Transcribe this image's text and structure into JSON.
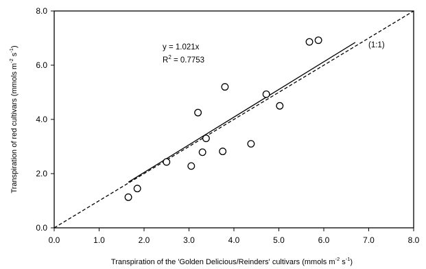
{
  "chart_data": {
    "type": "scatter",
    "xlim": [
      0,
      8
    ],
    "ylim": [
      0,
      8
    ],
    "x_ticks": [
      "0.0",
      "1.0",
      "2.0",
      "3.0",
      "4.0",
      "5.0",
      "6.0",
      "7.0",
      "8.0"
    ],
    "y_ticks": [
      "0.0",
      "2.0",
      "4.0",
      "6.0",
      "8.0"
    ],
    "grid": false,
    "legend": "none",
    "xlabel_parts": {
      "main": "Transpiration of the 'Golden Delicious/Reinders' cultivars (mmols m",
      "sup1": "-2",
      "mid": " s",
      "sup2": "-1",
      "end": ")"
    },
    "ylabel_parts": {
      "main": "Transpiration of red cultivars (mmols m",
      "sup1": "-2",
      "mid": " s",
      "sup2": "-1",
      "end": ")"
    },
    "points": [
      {
        "x": 1.65,
        "y": 1.13
      },
      {
        "x": 1.85,
        "y": 1.45
      },
      {
        "x": 2.5,
        "y": 2.43
      },
      {
        "x": 3.05,
        "y": 2.28
      },
      {
        "x": 3.2,
        "y": 4.25
      },
      {
        "x": 3.3,
        "y": 2.79
      },
      {
        "x": 3.38,
        "y": 3.3
      },
      {
        "x": 3.75,
        "y": 2.82
      },
      {
        "x": 3.8,
        "y": 5.2
      },
      {
        "x": 4.38,
        "y": 3.1
      },
      {
        "x": 4.72,
        "y": 4.93
      },
      {
        "x": 5.02,
        "y": 4.5
      },
      {
        "x": 5.68,
        "y": 6.86
      },
      {
        "x": 5.88,
        "y": 6.92
      }
    ],
    "regression": {
      "slope": 1.021,
      "x_range": [
        1.65,
        6.7
      ]
    },
    "one_to_one": {
      "x_range": [
        0,
        8
      ]
    },
    "annotations": {
      "equation": "y = 1.021x",
      "r2_prefix": "R",
      "r2_sup": "2",
      "r2_value": " = 0.7753",
      "one_to_one_label": "(1:1)"
    },
    "colors": {
      "marker_stroke": "#000000",
      "marker_fill": "#ffffff",
      "regression_line": "#000000",
      "one_to_one_line": "#000000",
      "axis": "#000000"
    }
  }
}
